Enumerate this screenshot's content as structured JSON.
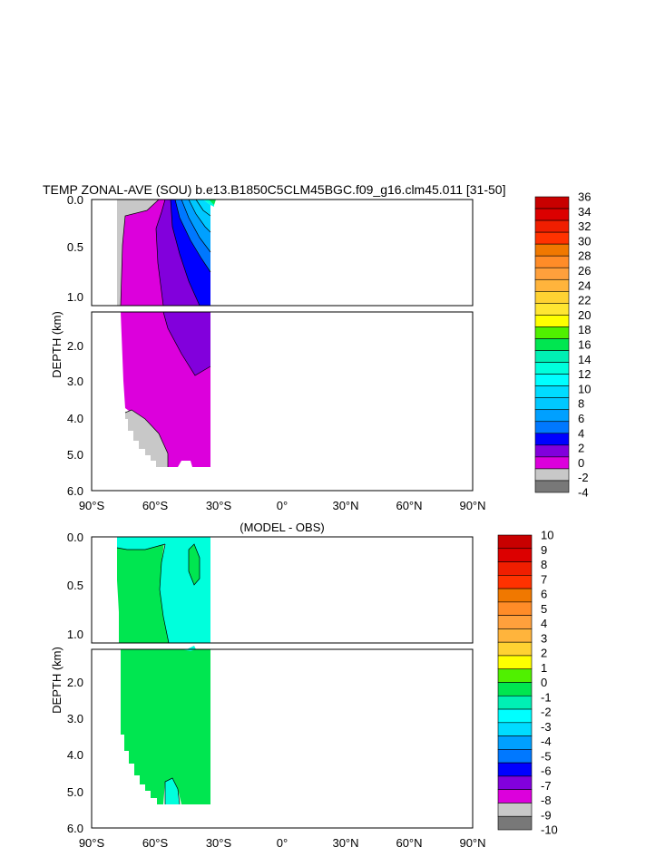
{
  "chart_data": [
    {
      "type": "heatmap",
      "title": "TEMP ZONAL-AVE (SOU) b.e13.B1850C5CLM45BGC.f09_g16.clm45.011 [31-50]",
      "ylabel": "DEPTH (km)",
      "x_ticks": [
        "90°S",
        "60°S",
        "30°S",
        "0°",
        "30°N",
        "60°N",
        "90°N"
      ],
      "x_range": [
        -90,
        90
      ],
      "upper_y_range": [
        0.0,
        1.15
      ],
      "upper_y_ticks": [
        "0.0",
        "0.5",
        "1.0"
      ],
      "lower_y_range": [
        1.15,
        6.0
      ],
      "lower_y_ticks": [
        "2.0",
        "3.0",
        "4.0",
        "5.0",
        "6.0"
      ],
      "colorbar_labels": [
        "36",
        "34",
        "32",
        "30",
        "28",
        "26",
        "24",
        "22",
        "20",
        "18",
        "16",
        "14",
        "12",
        "10",
        "8",
        "6",
        "4",
        "2",
        "0",
        "-2",
        "-4"
      ],
      "colorbar_colors": [
        "#c80000",
        "#dc0000",
        "#f01e00",
        "#ff3200",
        "#f07800",
        "#ff8c28",
        "#ffa03c",
        "#ffb43c",
        "#ffd232",
        "#ffe632",
        "#ffff00",
        "#50f000",
        "#00e650",
        "#00f0b4",
        "#00ffdc",
        "#00ffff",
        "#00dcff",
        "#00c8ff",
        "#00a0ff",
        "#0078ff",
        "#0000ff",
        "#8200dc",
        "#dc00dc",
        "#c8c8c8",
        "#787878"
      ]
    },
    {
      "type": "heatmap",
      "title": "(MODEL - OBS)",
      "ylabel": "DEPTH (km)",
      "x_ticks": [
        "90°S",
        "60°S",
        "30°S",
        "0°",
        "30°N",
        "60°N",
        "90°N"
      ],
      "x_range": [
        -90,
        90
      ],
      "upper_y_ticks": [
        "0.0",
        "0.5",
        "1.0"
      ],
      "lower_y_ticks": [
        "2.0",
        "3.0",
        "4.0",
        "5.0",
        "6.0"
      ],
      "colorbar_labels": [
        "10",
        "9",
        "8",
        "7",
        "6",
        "5",
        "4",
        "3",
        "2",
        "1",
        "0",
        "-1",
        "-2",
        "-3",
        "-4",
        "-5",
        "-6",
        "-7",
        "-8",
        "-9",
        "-10"
      ],
      "colorbar_colors": [
        "#c80000",
        "#dc0000",
        "#f01e00",
        "#ff3200",
        "#f07800",
        "#ff8c28",
        "#ffa03c",
        "#ffb43c",
        "#ffd232",
        "#ffff00",
        "#50f000",
        "#00e650",
        "#00f0b4",
        "#00ffff",
        "#00dcff",
        "#00a0ff",
        "#0078ff",
        "#0000ff",
        "#8200dc",
        "#dc00dc",
        "#c8c8c8",
        "#787878"
      ]
    }
  ]
}
